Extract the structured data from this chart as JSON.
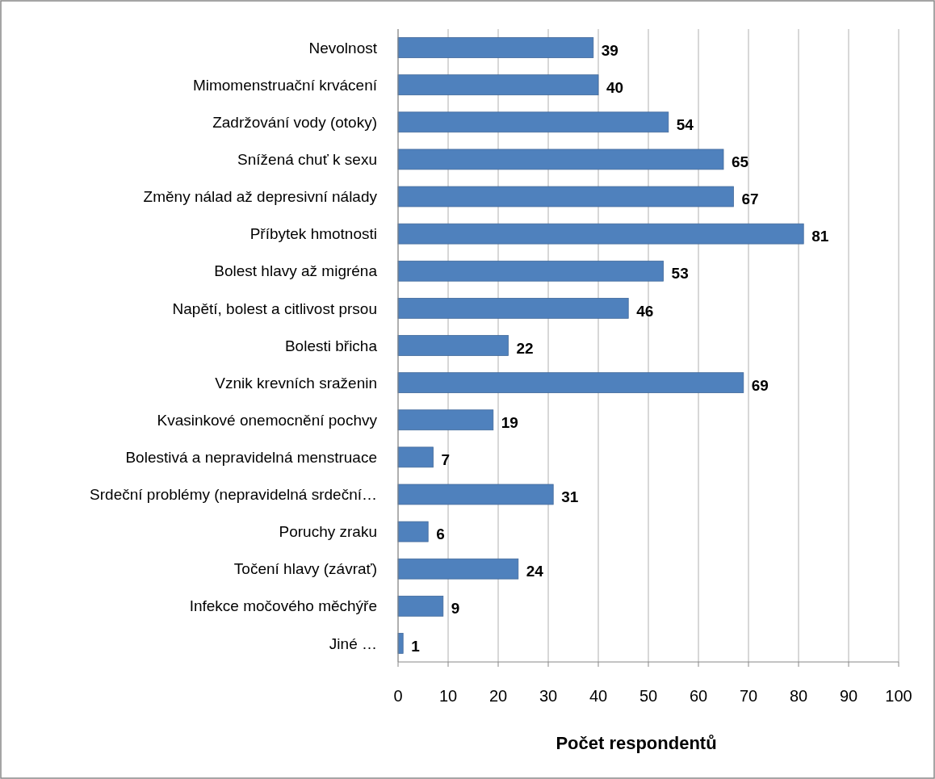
{
  "chart_data": {
    "type": "bar",
    "orientation": "horizontal",
    "xlabel": "Počet respondentů",
    "categories": [
      "Nevolnost",
      "Mimomenstruační krvácení",
      "Zadržování vody (otoky)",
      "Snížená chuť k sexu",
      "Změny nálad až depresivní nálady",
      "Příbytek hmotnosti",
      "Bolest hlavy až migréna",
      "Napětí, bolest a citlivost prsou",
      "Bolesti břicha",
      "Vznik krevních sraženin",
      "Kvasinkové onemocnění pochvy",
      "Bolestivá a nepravidelná menstruace",
      "Srdeční problémy (nepravidelná srdeční…",
      "Poruchy zraku",
      "Točení hlavy (závrať)",
      "Infekce močového měchýře",
      "Jiné …"
    ],
    "values": [
      39,
      40,
      54,
      65,
      67,
      81,
      53,
      46,
      22,
      69,
      19,
      7,
      31,
      6,
      24,
      9,
      1
    ],
    "color": "#4f81bd",
    "data_labels": true,
    "grid": "x",
    "xlim": [
      0,
      100
    ],
    "xticks": [
      0,
      10,
      20,
      30,
      40,
      50,
      60,
      70,
      80,
      90,
      100
    ]
  }
}
